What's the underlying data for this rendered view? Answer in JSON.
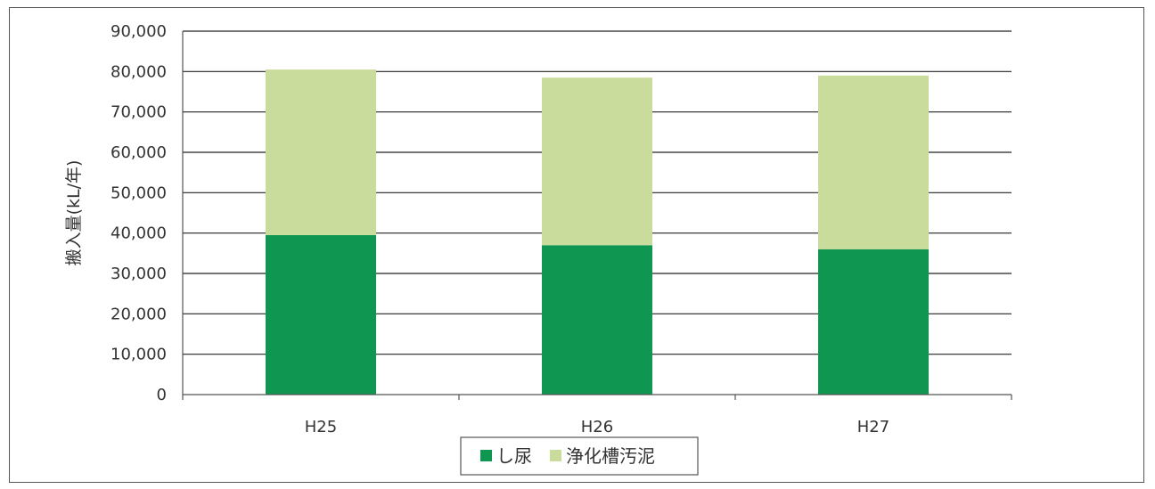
{
  "chart_data": {
    "type": "bar",
    "stacked": true,
    "title": "",
    "xlabel": "",
    "ylabel": "搬入量(kL/年)",
    "categories": [
      "H25",
      "H26",
      "H27"
    ],
    "series": [
      {
        "name": "し尿",
        "values": [
          39500,
          37000,
          36000
        ],
        "color": "#0f9650"
      },
      {
        "name": "浄化槽汚泥",
        "values": [
          41000,
          41500,
          43000
        ],
        "color": "#c9dc9b"
      }
    ],
    "ylim": [
      0,
      90000
    ],
    "yticks": [
      0,
      10000,
      20000,
      30000,
      40000,
      50000,
      60000,
      70000,
      80000,
      90000
    ],
    "ytick_labels": [
      "0",
      "10,000",
      "20,000",
      "30,000",
      "40,000",
      "50,000",
      "60,000",
      "70,000",
      "80,000",
      "90,000"
    ],
    "grid": true,
    "legend_position": "bottom"
  }
}
